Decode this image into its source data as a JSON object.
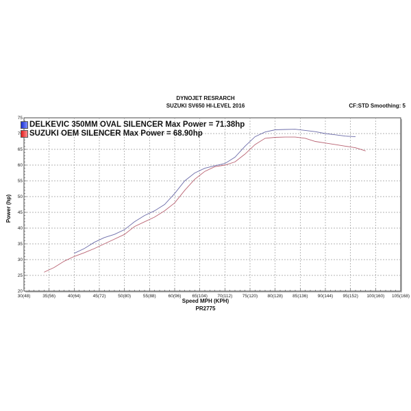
{
  "chart_data": {
    "type": "line",
    "title": "DYNOJET RESRARCH",
    "subtitle": "SUZUKI SV650 HI-LEVEL 2016",
    "corner_text": "CF:STD Smoothing: 5",
    "footer": "PR2775",
    "xlabel": "Speed MPH (KPH)",
    "ylabel": "Power (hp)",
    "xlim": [
      30,
      105
    ],
    "ylim": [
      20,
      75
    ],
    "grid": true,
    "legend_placement": "top-left",
    "x_tick_labels": [
      "30(48)",
      "35(56)",
      "40(64)",
      "45(72)",
      "50(80)",
      "55(88)",
      "60(96)",
      "65(104)",
      "70(112)",
      "75(120)",
      "80(128)",
      "85(136)",
      "90(144)",
      "95(152)",
      "100(160)",
      "105(168)"
    ],
    "y_tick_labels": [
      "20",
      "25",
      "30",
      "35",
      "40",
      "45",
      "50",
      "55",
      "60",
      "65",
      "70",
      "75"
    ],
    "series": [
      {
        "name": "DELKEVIC 350MM OVAL SILENCER  Max Power = 71.38hp",
        "color": "#6a6aa8",
        "swatch": "#1a2fd0",
        "points": [
          [
            40,
            32
          ],
          [
            42,
            33.5
          ],
          [
            44,
            35.5
          ],
          [
            46,
            37
          ],
          [
            48,
            38
          ],
          [
            50,
            39.5
          ],
          [
            52,
            42
          ],
          [
            54,
            44
          ],
          [
            56,
            45.5
          ],
          [
            58,
            47.5
          ],
          [
            60,
            51
          ],
          [
            62,
            55
          ],
          [
            64,
            57.5
          ],
          [
            66,
            59
          ],
          [
            68,
            59.8
          ],
          [
            70,
            60.5
          ],
          [
            72,
            62.5
          ],
          [
            74,
            66
          ],
          [
            76,
            69
          ],
          [
            78,
            70.5
          ],
          [
            80,
            71.2
          ],
          [
            82,
            71.3
          ],
          [
            84,
            71.38
          ],
          [
            86,
            71
          ],
          [
            88,
            70.6
          ],
          [
            90,
            70
          ],
          [
            92,
            69.6
          ],
          [
            94,
            69.2
          ],
          [
            96,
            69
          ]
        ]
      },
      {
        "name": "SUZUKI OEM SILENCER Max Power = 68.90hp",
        "color": "#b86070",
        "swatch": "#e01a1a",
        "points": [
          [
            34,
            26
          ],
          [
            36,
            27.5
          ],
          [
            38,
            29.5
          ],
          [
            40,
            31
          ],
          [
            42,
            32.2
          ],
          [
            44,
            33.5
          ],
          [
            46,
            35
          ],
          [
            48,
            36.5
          ],
          [
            50,
            38
          ],
          [
            52,
            40.5
          ],
          [
            54,
            42
          ],
          [
            56,
            43.5
          ],
          [
            58,
            45.5
          ],
          [
            60,
            48
          ],
          [
            62,
            52
          ],
          [
            64,
            55.5
          ],
          [
            66,
            58
          ],
          [
            68,
            59.5
          ],
          [
            70,
            60
          ],
          [
            72,
            61
          ],
          [
            74,
            63.5
          ],
          [
            76,
            66.5
          ],
          [
            78,
            68.5
          ],
          [
            80,
            68.8
          ],
          [
            82,
            68.9
          ],
          [
            84,
            68.9
          ],
          [
            86,
            68.5
          ],
          [
            88,
            67.5
          ],
          [
            90,
            67
          ],
          [
            92,
            66.5
          ],
          [
            94,
            66
          ],
          [
            96,
            65.5
          ],
          [
            98,
            64.5
          ]
        ]
      }
    ]
  }
}
